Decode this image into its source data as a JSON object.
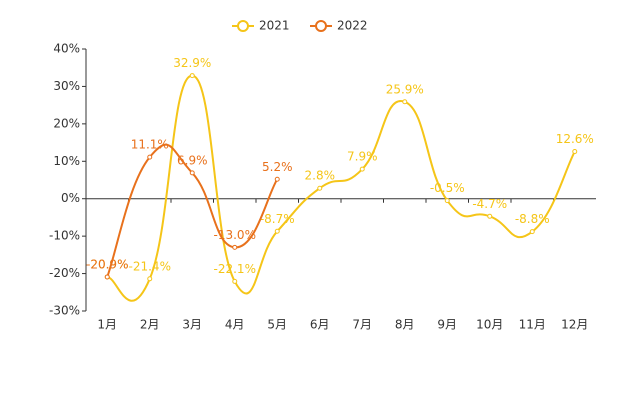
{
  "chart_data": {
    "type": "line",
    "categories": [
      "1月",
      "2月",
      "3月",
      "4月",
      "5月",
      "6月",
      "7月",
      "8月",
      "9月",
      "10月",
      "11月",
      "12月"
    ],
    "series": [
      {
        "name": "2021",
        "color": "#f5c518",
        "values": [
          -20.9,
          -21.4,
          32.9,
          -22.1,
          -8.7,
          2.8,
          7.9,
          25.9,
          -0.5,
          -4.7,
          -8.8,
          12.6
        ],
        "value_labels": [
          "-20.9%",
          "-21.4%",
          "32.9%",
          "-22.1%",
          "-8.7%",
          "2.8%",
          "7.9%",
          "25.9%",
          "-0.5%",
          "-4.7%",
          "-8.8%",
          "12.6%"
        ]
      },
      {
        "name": "2022",
        "color": "#e8711c",
        "values": [
          -20.9,
          11.1,
          6.9,
          -13.0,
          5.2,
          null,
          null,
          null,
          null,
          null,
          null,
          null
        ],
        "value_labels": [
          "-20.9%",
          "11.1%",
          "6.9%",
          "-13.0%",
          "5.2%",
          null,
          null,
          null,
          null,
          null,
          null,
          null
        ]
      }
    ],
    "ylim": [
      -30,
      40
    ],
    "yticks": [
      {
        "value": -30,
        "label": "-30%"
      },
      {
        "value": -20,
        "label": "-20%"
      },
      {
        "value": -10,
        "label": "-10%"
      },
      {
        "value": 0,
        "label": "0%"
      },
      {
        "value": 10,
        "label": "10%"
      },
      {
        "value": 20,
        "label": "20%"
      },
      {
        "value": 30,
        "label": "30%"
      },
      {
        "value": 40,
        "label": "40%"
      }
    ],
    "legend": "top"
  }
}
